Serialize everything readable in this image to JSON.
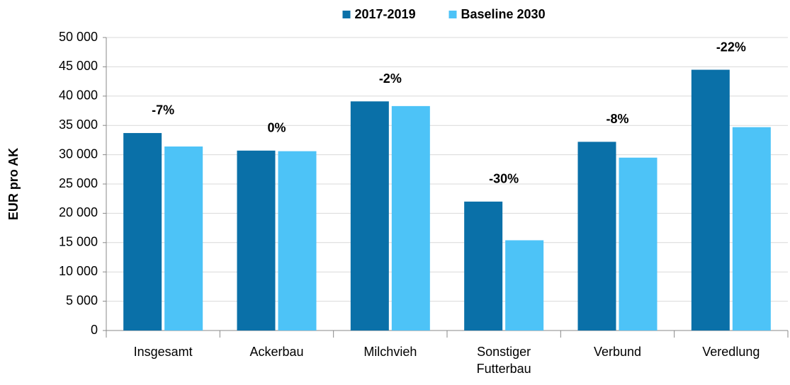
{
  "chart_data": {
    "type": "bar",
    "y_label": "EUR pro AK",
    "categories": [
      "Insgesamt",
      "Ackerbau",
      "Milchvieh",
      "Sonstiger Futterbau",
      "Verbund",
      "Veredlung"
    ],
    "series": [
      {
        "name": "2017-2019",
        "color": "#0a70a8",
        "values": [
          33700,
          30700,
          39100,
          22000,
          32200,
          44500
        ]
      },
      {
        "name": "Baseline 2030",
        "color": "#4dc3f7",
        "values": [
          31400,
          30600,
          38300,
          15400,
          29500,
          34700
        ]
      }
    ],
    "annotations": [
      "-7%",
      "0%",
      "-2%",
      "-30%",
      "-8%",
      "-22%"
    ],
    "ylim": [
      0,
      50000
    ],
    "yticks": [
      0,
      {
        "value": 5000,
        "label": "5 000"
      },
      {
        "value": 10000,
        "label": "10 000"
      },
      {
        "value": 15000,
        "label": "15 000"
      },
      {
        "value": 20000,
        "label": "20 000"
      },
      {
        "value": 25000,
        "label": "25 000"
      },
      {
        "value": 30000,
        "label": "30 000"
      },
      {
        "value": 35000,
        "label": "35 000"
      },
      {
        "value": 40000,
        "label": "40 000"
      },
      {
        "value": 45000,
        "label": "45 000"
      },
      {
        "value": 50000,
        "label": "50 000"
      }
    ],
    "grid": true,
    "legend": "top"
  }
}
